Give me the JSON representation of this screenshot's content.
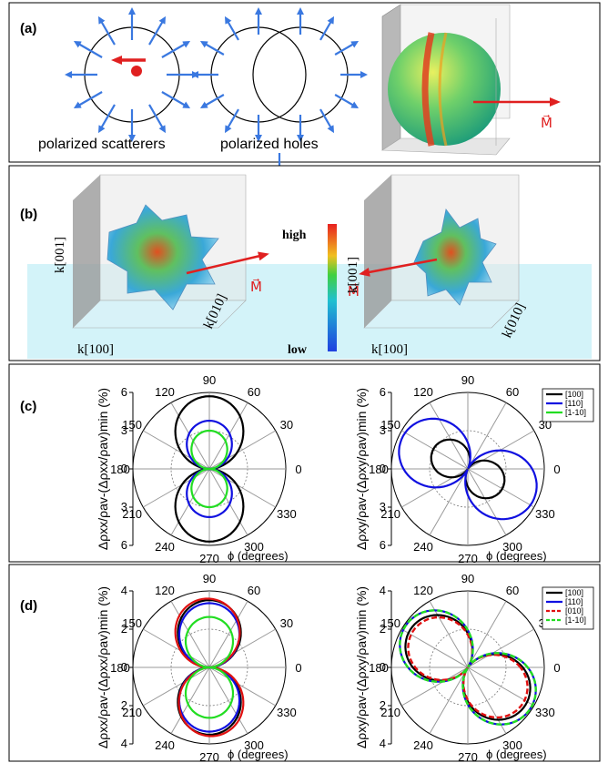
{
  "panels": {
    "a": {
      "letter": "(a)",
      "caption_left": "polarized scatterers",
      "caption_mid": "polarized holes",
      "vector_label": "M⃗"
    },
    "b": {
      "letter": "(b)",
      "colorbar_high": "high",
      "colorbar_low": "low",
      "k001": "k[001]",
      "k010": "k[010]",
      "k100": "k[100]",
      "vector_label": "M⃗"
    },
    "c": {
      "letter": "(c)",
      "ylabel_left": "Δρxx/ρav-(Δρxx/ρav)min (%)",
      "ylabel_right": "Δρxy/ρav-(Δρxy/ρav)min (%)",
      "xlabel": "ϕ (degrees)",
      "ticks_left": [
        "6",
        "3",
        "0",
        "3",
        "6"
      ],
      "ticks_right": [
        "6",
        "3",
        "0",
        "3",
        "6"
      ],
      "angles": [
        "90",
        "60",
        "30",
        "0",
        "330",
        "300",
        "270",
        "240",
        "210",
        "180",
        "150",
        "120"
      ],
      "legend": [
        "[100]",
        "[110]",
        "[1-10]"
      ]
    },
    "d": {
      "letter": "(d)",
      "ylabel_left": "Δρxx/ρav-(Δρxx/ρav)min (%)",
      "ylabel_right": "Δρxy/ρav-(Δρxy/ρav)min (%)",
      "xlabel": "ϕ (degrees)",
      "ticks_left": [
        "4",
        "2",
        "0",
        "2",
        "4"
      ],
      "ticks_right": [
        "4",
        "2",
        "0",
        "2",
        "4"
      ],
      "angles": [
        "90",
        "60",
        "30",
        "0",
        "330",
        "300",
        "270",
        "240",
        "210",
        "180",
        "150",
        "120"
      ],
      "legend": [
        "[100]",
        "[110]",
        "[010]",
        "[1-10]"
      ]
    }
  },
  "colors": {
    "black": "#000000",
    "blue": "#1010e0",
    "green": "#22dd22",
    "red": "#e01010",
    "arrow_blue": "#3a78e0",
    "arrow_red": "#e02020"
  }
}
